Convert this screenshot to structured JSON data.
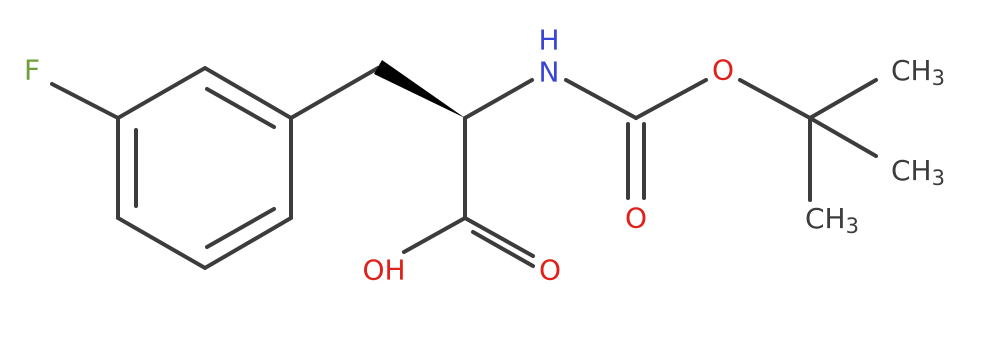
{
  "molecule": {
    "fluorine": "F",
    "nitrogen": "N",
    "amide_hydrogen": "H",
    "carbonyl_oxygen": "O",
    "ester_oxygen": "O",
    "acid_oxygen": "O",
    "hydroxyl": "OH",
    "methyls": [
      {
        "main": "CH",
        "sub": "3"
      },
      {
        "main": "CH",
        "sub": "3"
      },
      {
        "main": "CH",
        "sub": "3"
      }
    ]
  }
}
